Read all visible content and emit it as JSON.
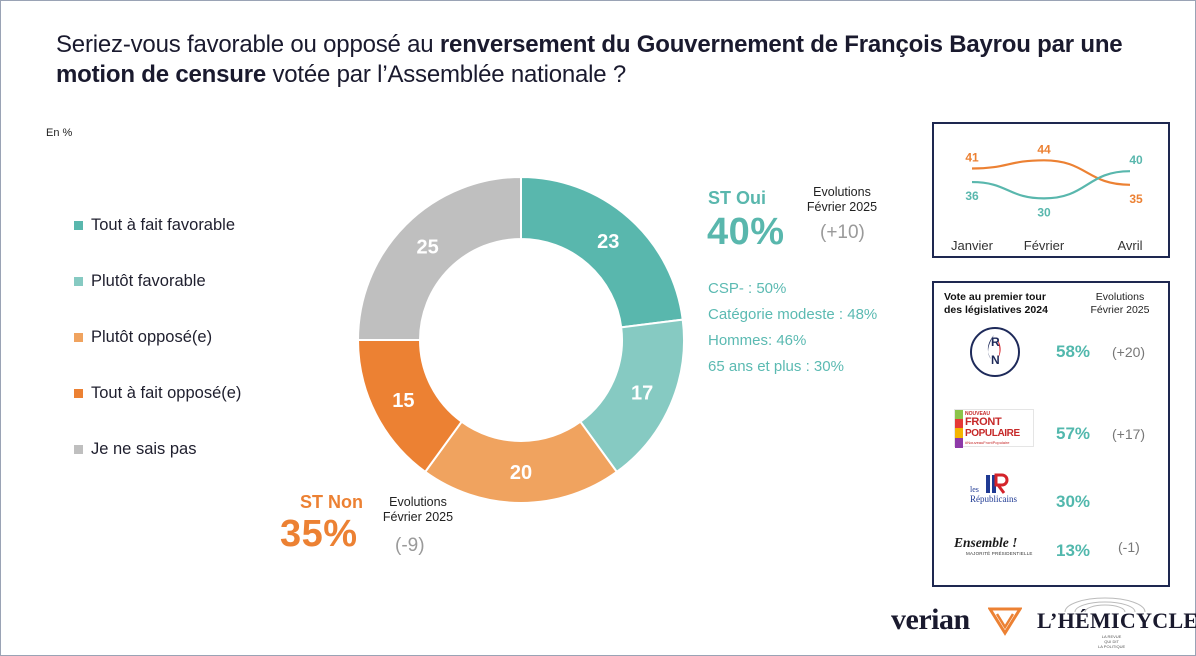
{
  "title": {
    "part1": "Seriez-vous favorable ou opposé au ",
    "bold1": "renversement du Gouvernement de François Bayrou par une motion de censure",
    "part2": " votée par l’Assemblée nationale ?"
  },
  "unit": "En %",
  "legend": [
    {
      "label": "Tout à fait favorable",
      "color": "#59b7ad"
    },
    {
      "label": "Plutôt favorable",
      "color": "#86cac2"
    },
    {
      "label": "Plutôt opposé(e)",
      "color": "#f0a35f"
    },
    {
      "label": "Tout à fait opposé(e)",
      "color": "#ec8133"
    },
    {
      "label": "Je ne sais pas",
      "color": "#bfbfbf"
    }
  ],
  "chart_data": [
    {
      "type": "pie",
      "variant": "donut",
      "title": "Seriez-vous favorable ou opposé au renversement du Gouvernement de François Bayrou par une motion de censure votée par l’Assemblée nationale ?",
      "unit": "%",
      "categories": [
        "Tout à fait favorable",
        "Plutôt favorable",
        "Plutôt opposé(e)",
        "Tout à fait opposé(e)",
        "Je ne sais pas"
      ],
      "values": [
        23,
        17,
        20,
        15,
        25
      ],
      "colors": [
        "#59b7ad",
        "#86cac2",
        "#f0a35f",
        "#ec8133",
        "#bfbfbf"
      ],
      "start": "top",
      "direction": "clockwise"
    },
    {
      "type": "line",
      "title": "Evolution",
      "categories": [
        "Janvier",
        "Février",
        "Avril"
      ],
      "series": [
        {
          "name": "ST Non",
          "values": [
            41,
            44,
            35
          ],
          "color": "#ec8133"
        },
        {
          "name": "ST Oui",
          "values": [
            36,
            30,
            40
          ],
          "color": "#59b7ad"
        }
      ],
      "ylim": [
        25,
        50
      ]
    }
  ],
  "st_oui": {
    "label": "ST Oui",
    "value": "40%",
    "evo_line1": "Evolutions",
    "evo_line2": "Février 2025",
    "delta": "(+10)",
    "color": "#59b7ad"
  },
  "st_non": {
    "label": "ST Non",
    "value": "35%",
    "evo_line1": "Evolutions",
    "evo_line2": "Février 2025",
    "delta": "(-9)",
    "color": "#ec8133"
  },
  "details": [
    "CSP- :  50%",
    "Catégorie modeste : 48%",
    "Hommes: 46%",
    "65 ans et plus : 30%"
  ],
  "vote_box": {
    "title_line1": "Vote au premier tour",
    "title_line2": "des législatives 2024",
    "evo_line1": "Evolutions",
    "evo_line2": "Février 2025",
    "parties": [
      {
        "name": "RN",
        "logo": [
          "R",
          "N"
        ],
        "pct": "58%",
        "delta": "(+20)"
      },
      {
        "name": "Nouveau Front Populaire",
        "logo": [
          "NOUVEAU",
          "FRONT",
          "POPULAIRE",
          "#NouveauFrontPopulaire"
        ],
        "pct": "57%",
        "delta": "(+17)"
      },
      {
        "name": "Les Républicains",
        "logo": [
          "les",
          "Républicains"
        ],
        "pct": "30%",
        "delta": ""
      },
      {
        "name": "Ensemble !",
        "logo": [
          "Ensemble !",
          "MAJORITÉ PRÉSIDENTIELLE"
        ],
        "pct": "13%",
        "delta": "(-1)"
      }
    ]
  },
  "footer": {
    "brand1": "verian",
    "brand2": "L’HÉMICYCLE",
    "brand2_tag": [
      "LA REVUE",
      "QUI DIT",
      "LA POLITIQUE"
    ]
  }
}
